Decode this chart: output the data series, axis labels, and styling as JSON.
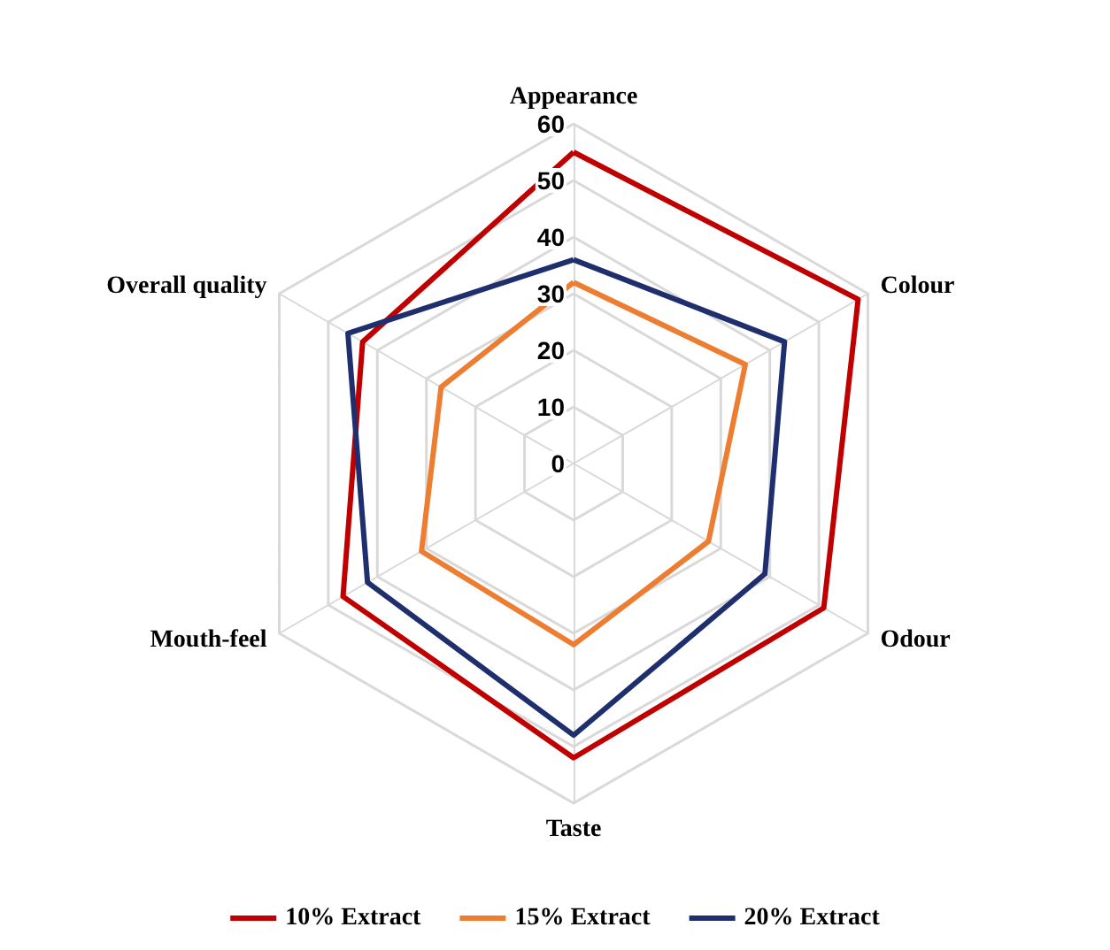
{
  "chart_data": {
    "type": "radar",
    "categories": [
      "Appearance",
      "Colour",
      "Odour",
      "Taste",
      "Mouth-feel",
      "Overall quality"
    ],
    "series": [
      {
        "name": "10% Extract",
        "color": "#c00000",
        "values": [
          55,
          58,
          51,
          52,
          47,
          43
        ]
      },
      {
        "name": "15% Extract",
        "color": "#ed7d31",
        "values": [
          32,
          35,
          27.5,
          32,
          31,
          27
        ]
      },
      {
        "name": "20% Extract",
        "color": "#1f2f6e",
        "values": [
          36,
          43,
          39,
          48,
          42,
          46
        ]
      }
    ],
    "ylim": [
      0,
      60
    ],
    "yticks": [
      0,
      10,
      20,
      30,
      40,
      50,
      60
    ],
    "grid": true,
    "legend": "bottom",
    "marker": "none"
  }
}
